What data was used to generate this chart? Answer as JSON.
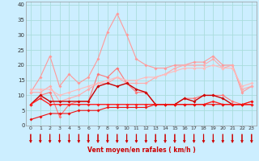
{
  "xlabel": "Vent moyen/en rafales ( km/h )",
  "background_color": "#cceeff",
  "grid_color": "#aadddd",
  "x_ticks": [
    0,
    1,
    2,
    3,
    4,
    5,
    6,
    7,
    8,
    9,
    10,
    11,
    12,
    13,
    14,
    15,
    16,
    17,
    18,
    19,
    20,
    21,
    22,
    23
  ],
  "y_ticks": [
    0,
    5,
    10,
    15,
    20,
    25,
    30,
    35,
    40
  ],
  "ylim": [
    0,
    41
  ],
  "xlim": [
    0,
    23
  ],
  "series": [
    {
      "color": "#ff9999",
      "linewidth": 0.8,
      "markersize": 2.0,
      "data": [
        [
          0,
          11
        ],
        [
          1,
          16
        ],
        [
          2,
          23
        ],
        [
          3,
          13
        ],
        [
          4,
          17
        ],
        [
          5,
          14
        ],
        [
          6,
          16
        ],
        [
          7,
          22
        ],
        [
          8,
          31
        ],
        [
          9,
          37
        ],
        [
          10,
          30
        ],
        [
          11,
          22
        ],
        [
          12,
          20
        ],
        [
          13,
          19
        ],
        [
          14,
          19
        ],
        [
          15,
          20
        ],
        [
          16,
          20
        ],
        [
          17,
          21
        ],
        [
          18,
          21
        ],
        [
          19,
          23
        ],
        [
          20,
          20
        ],
        [
          21,
          20
        ],
        [
          22,
          11
        ],
        [
          23,
          13
        ]
      ]
    },
    {
      "color": "#ff7777",
      "linewidth": 0.8,
      "markersize": 2.0,
      "data": [
        [
          0,
          7
        ],
        [
          1,
          10
        ],
        [
          2,
          11
        ],
        [
          3,
          3
        ],
        [
          4,
          7
        ],
        [
          5,
          8
        ],
        [
          6,
          8
        ],
        [
          7,
          17
        ],
        [
          8,
          16
        ],
        [
          9,
          19
        ],
        [
          10,
          14
        ],
        [
          11,
          11
        ],
        [
          12,
          11
        ],
        [
          13,
          7
        ],
        [
          14,
          7
        ],
        [
          15,
          7
        ],
        [
          16,
          9
        ],
        [
          17,
          9
        ],
        [
          18,
          10
        ],
        [
          19,
          10
        ],
        [
          20,
          10
        ],
        [
          21,
          8
        ],
        [
          22,
          7
        ],
        [
          23,
          8
        ]
      ]
    },
    {
      "color": "#ffaaaa",
      "linewidth": 0.8,
      "markersize": 2.0,
      "data": [
        [
          0,
          11
        ],
        [
          1,
          11
        ],
        [
          2,
          13
        ],
        [
          3,
          8
        ],
        [
          4,
          9
        ],
        [
          5,
          10
        ],
        [
          6,
          12
        ],
        [
          7,
          14
        ],
        [
          8,
          14
        ],
        [
          9,
          16
        ],
        [
          10,
          14
        ],
        [
          11,
          14
        ],
        [
          12,
          14
        ],
        [
          13,
          16
        ],
        [
          14,
          17
        ],
        [
          15,
          19
        ],
        [
          16,
          20
        ],
        [
          17,
          20
        ],
        [
          18,
          20
        ],
        [
          19,
          22
        ],
        [
          20,
          19
        ],
        [
          21,
          20
        ],
        [
          22,
          12
        ],
        [
          23,
          13
        ]
      ]
    },
    {
      "color": "#ffbbbb",
      "linewidth": 0.8,
      "markersize": 2.0,
      "data": [
        [
          0,
          12
        ],
        [
          1,
          12
        ],
        [
          2,
          12
        ],
        [
          3,
          10
        ],
        [
          4,
          11
        ],
        [
          5,
          12
        ],
        [
          6,
          13
        ],
        [
          7,
          14
        ],
        [
          8,
          15
        ],
        [
          9,
          16
        ],
        [
          10,
          15
        ],
        [
          11,
          15
        ],
        [
          12,
          16
        ],
        [
          13,
          16
        ],
        [
          14,
          17
        ],
        [
          15,
          18
        ],
        [
          16,
          19
        ],
        [
          17,
          19
        ],
        [
          18,
          19
        ],
        [
          19,
          20
        ],
        [
          20,
          19
        ],
        [
          21,
          19
        ],
        [
          22,
          13
        ],
        [
          23,
          14
        ]
      ]
    },
    {
      "color": "#cc0000",
      "linewidth": 1.0,
      "markersize": 2.0,
      "data": [
        [
          0,
          7
        ],
        [
          1,
          10
        ],
        [
          2,
          8
        ],
        [
          3,
          8
        ],
        [
          4,
          8
        ],
        [
          5,
          8
        ],
        [
          6,
          8
        ],
        [
          7,
          13
        ],
        [
          8,
          14
        ],
        [
          9,
          13
        ],
        [
          10,
          14
        ],
        [
          11,
          12
        ],
        [
          12,
          11
        ],
        [
          13,
          7
        ],
        [
          14,
          7
        ],
        [
          15,
          7
        ],
        [
          16,
          9
        ],
        [
          17,
          8
        ],
        [
          18,
          10
        ],
        [
          19,
          10
        ],
        [
          20,
          9
        ],
        [
          21,
          7
        ],
        [
          22,
          7
        ],
        [
          23,
          7
        ]
      ]
    },
    {
      "color": "#ff2222",
      "linewidth": 1.0,
      "markersize": 2.0,
      "data": [
        [
          0,
          7
        ],
        [
          1,
          9
        ],
        [
          2,
          7
        ],
        [
          3,
          7
        ],
        [
          4,
          7
        ],
        [
          5,
          7
        ],
        [
          6,
          7
        ],
        [
          7,
          7
        ],
        [
          8,
          7
        ],
        [
          9,
          7
        ],
        [
          10,
          7
        ],
        [
          11,
          7
        ],
        [
          12,
          7
        ],
        [
          13,
          7
        ],
        [
          14,
          7
        ],
        [
          15,
          7
        ],
        [
          16,
          7
        ],
        [
          17,
          7
        ],
        [
          18,
          7
        ],
        [
          19,
          8
        ],
        [
          20,
          7
        ],
        [
          21,
          7
        ],
        [
          22,
          7
        ],
        [
          23,
          7
        ]
      ]
    },
    {
      "color": "#ee1111",
      "linewidth": 0.8,
      "markersize": 2.0,
      "data": [
        [
          0,
          2
        ],
        [
          1,
          3
        ],
        [
          2,
          4
        ],
        [
          3,
          4
        ],
        [
          4,
          4
        ],
        [
          5,
          5
        ],
        [
          6,
          5
        ],
        [
          7,
          5
        ],
        [
          8,
          6
        ],
        [
          9,
          6
        ],
        [
          10,
          6
        ],
        [
          11,
          6
        ],
        [
          12,
          6
        ],
        [
          13,
          7
        ],
        [
          14,
          7
        ],
        [
          15,
          7
        ],
        [
          16,
          7
        ],
        [
          17,
          7
        ],
        [
          18,
          7
        ],
        [
          19,
          7
        ],
        [
          20,
          7
        ],
        [
          21,
          7
        ],
        [
          22,
          7
        ],
        [
          23,
          8
        ]
      ]
    }
  ],
  "arrow_color": "#cc0000",
  "xlabel_color": "#cc0000",
  "xlabel_fontsize": 5.5,
  "tick_fontsize": 4.5,
  "ytick_fontsize": 5.0
}
